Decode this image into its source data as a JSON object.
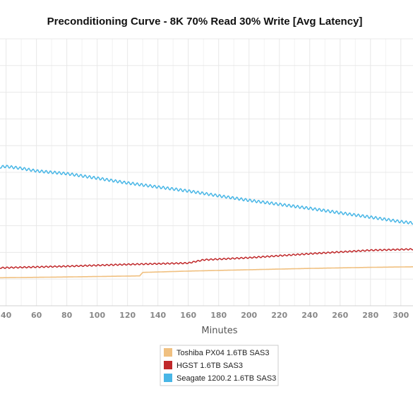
{
  "chart_data": {
    "type": "line",
    "title": "Preconditioning Curve - 8K 70% Read 30% Write [Avg Latency]",
    "xlabel": "Minutes",
    "ylabel": "",
    "xlim": [
      36,
      308
    ],
    "xticks": [
      40,
      60,
      80,
      100,
      120,
      140,
      160,
      180,
      200,
      220,
      240,
      260,
      280,
      300
    ],
    "ylim": [
      0,
      10
    ],
    "grid": true,
    "legend_position": "bottom-center",
    "series": [
      {
        "name": "Toshiba PX04 1.6TB SAS3",
        "color": "#f0c080",
        "points": [
          [
            36,
            1.05
          ],
          [
            80,
            1.08
          ],
          [
            128,
            1.12
          ],
          [
            130,
            1.25
          ],
          [
            160,
            1.3
          ],
          [
            200,
            1.35
          ],
          [
            240,
            1.4
          ],
          [
            280,
            1.44
          ],
          [
            308,
            1.46
          ]
        ]
      },
      {
        "name": "HGST 1.6TB SAS3",
        "color": "#c0282a",
        "points": [
          [
            36,
            1.42
          ],
          [
            80,
            1.48
          ],
          [
            120,
            1.55
          ],
          [
            160,
            1.6
          ],
          [
            170,
            1.72
          ],
          [
            200,
            1.8
          ],
          [
            240,
            1.95
          ],
          [
            280,
            2.08
          ],
          [
            308,
            2.12
          ]
        ]
      },
      {
        "name": "Seagate 1200.2 1.6TB SAS3",
        "color": "#48b6e6",
        "points": [
          [
            36,
            5.2
          ],
          [
            40,
            5.22
          ],
          [
            50,
            5.15
          ],
          [
            60,
            5.05
          ],
          [
            80,
            4.95
          ],
          [
            100,
            4.78
          ],
          [
            120,
            4.6
          ],
          [
            140,
            4.45
          ],
          [
            160,
            4.3
          ],
          [
            180,
            4.12
          ],
          [
            200,
            3.95
          ],
          [
            220,
            3.8
          ],
          [
            240,
            3.65
          ],
          [
            260,
            3.48
          ],
          [
            280,
            3.32
          ],
          [
            300,
            3.15
          ],
          [
            308,
            3.1
          ]
        ]
      }
    ]
  }
}
